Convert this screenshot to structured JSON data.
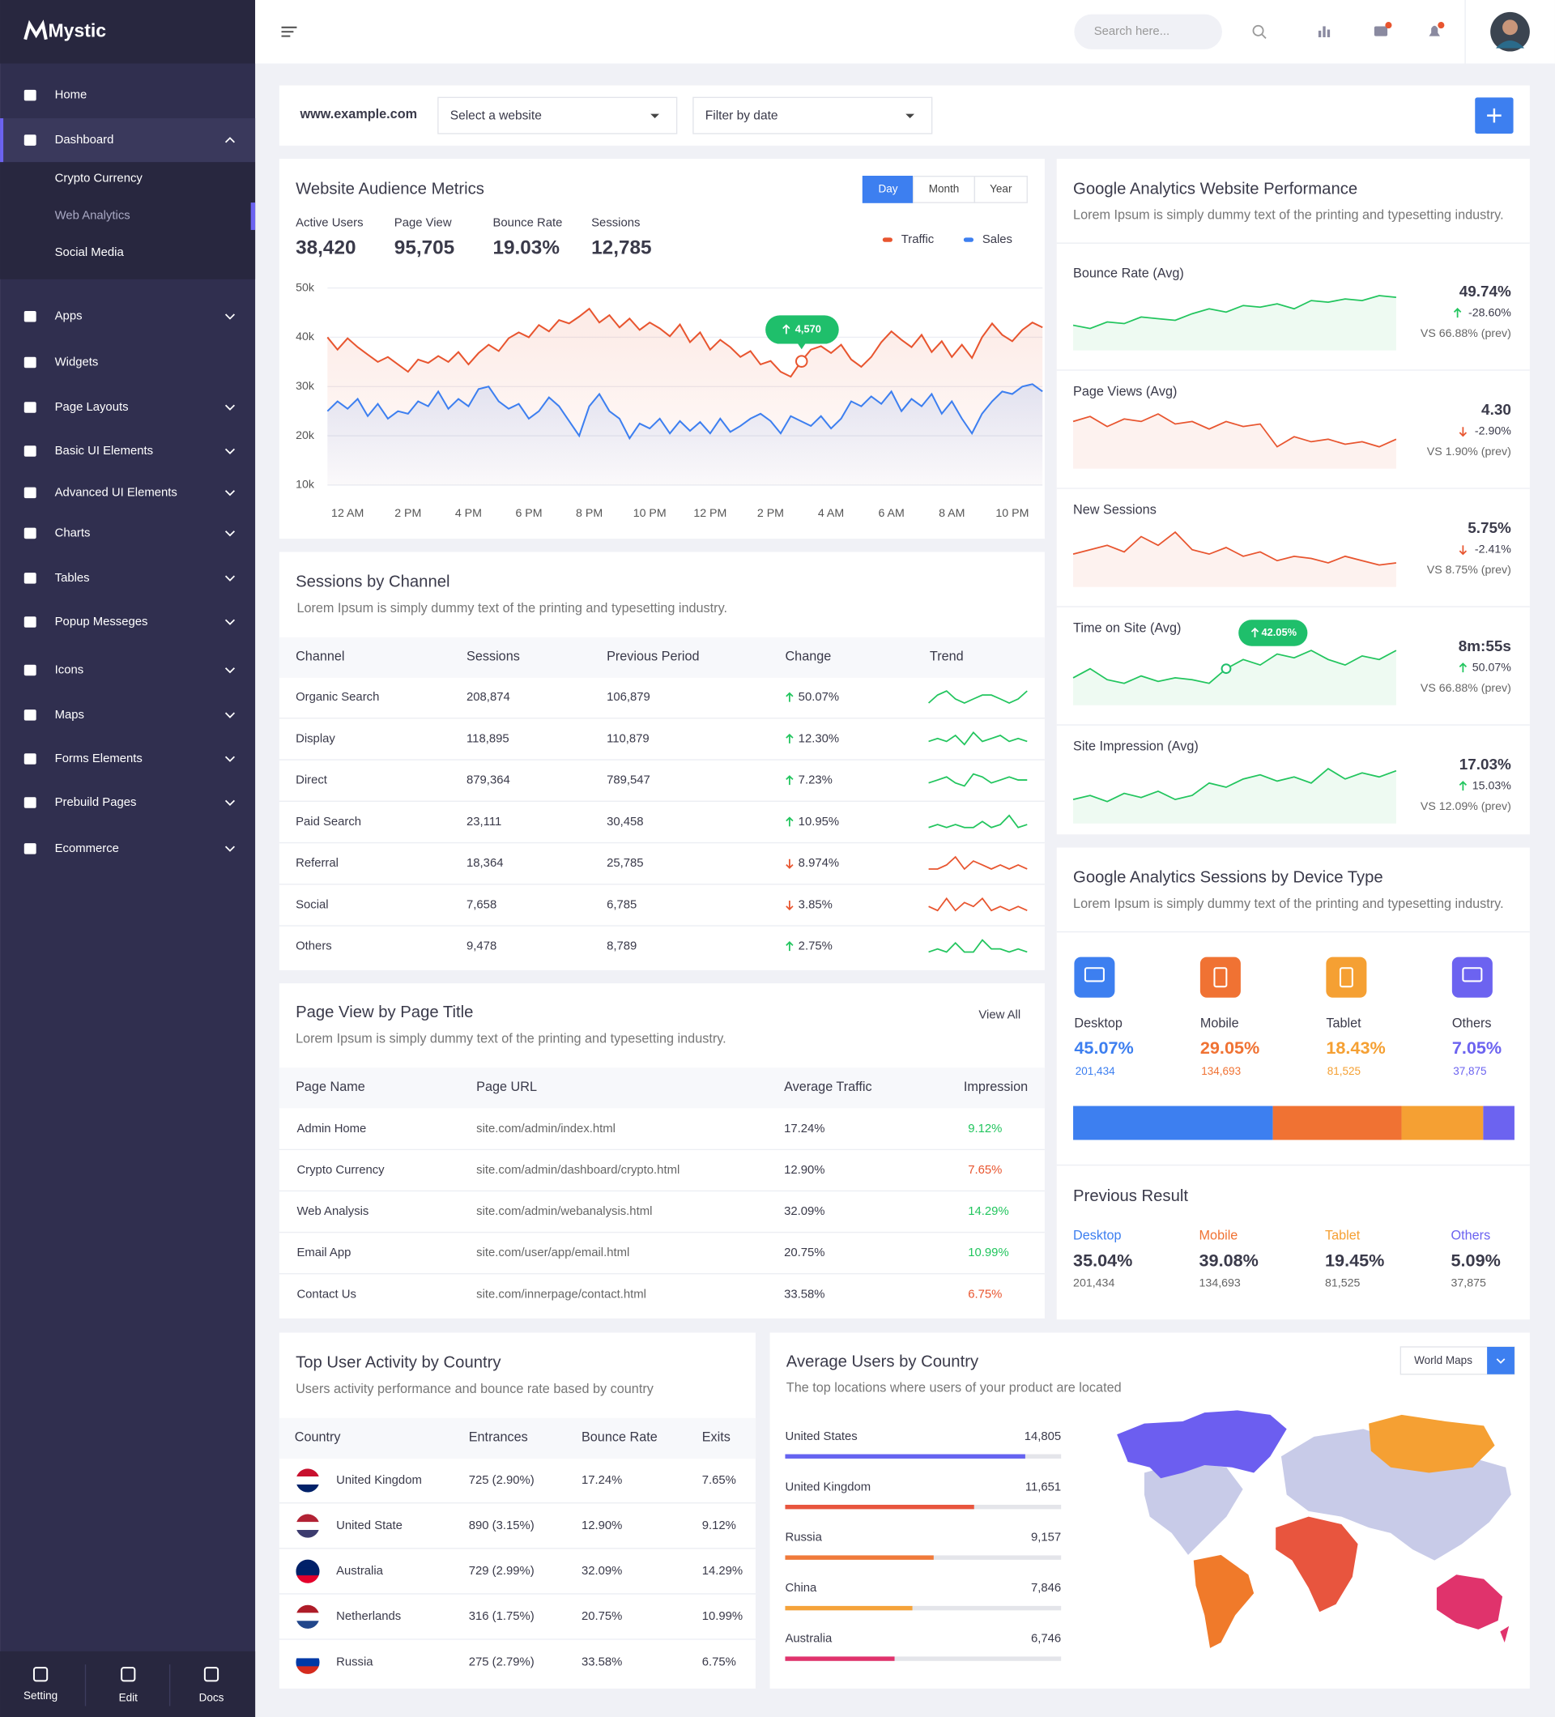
{
  "sidebar": {
    "brand": "Mystic",
    "menu": [
      {
        "label": "Home"
      },
      {
        "label": "Dashboard",
        "open": true
      },
      {
        "label": "Apps",
        "submenu": true
      },
      {
        "label": "Widgets"
      },
      {
        "label": "Page Layouts",
        "submenu": true
      },
      {
        "label": "Basic UI Elements",
        "submenu": true
      },
      {
        "label": "Advanced UI Elements",
        "submenu": true
      },
      {
        "label": "Charts",
        "submenu": true
      },
      {
        "label": "Tables",
        "submenu": true
      },
      {
        "label": "Popup Messeges",
        "submenu": true
      },
      {
        "label": "Icons",
        "submenu": true
      },
      {
        "label": "Maps",
        "submenu": true
      },
      {
        "label": "Forms Elements",
        "submenu": true
      },
      {
        "label": "Prebuild Pages",
        "submenu": true
      },
      {
        "label": "Ecommerce",
        "submenu": true
      }
    ],
    "submenu": [
      "Crypto Currency",
      "Web Analytics",
      "Social Media"
    ],
    "footer": [
      "Setting",
      "Edit",
      "Docs"
    ]
  },
  "header": {
    "search_placeholder": "Search here..."
  },
  "filters": {
    "site": "www.example.com",
    "select_website": "Select a website",
    "filter_date": "Filter by date"
  },
  "audience": {
    "range_buttons": [
      "Day",
      "Month",
      "Year"
    ],
    "metrics": [
      {
        "label": "Active Users",
        "value": "38,420"
      },
      {
        "label": "Page View",
        "value": "95,705"
      },
      {
        "label": "Bounce Rate",
        "value": "19.03%"
      },
      {
        "label": "Sessions",
        "value": "12,785"
      }
    ]
  },
  "chart_data": [
    {
      "type": "line",
      "title": "Website Audience Metrics",
      "categories": [
        null,
        null,
        "12 AM",
        null,
        null,
        null,
        null,
        null,
        "2 PM",
        null,
        null,
        null,
        null,
        null,
        "4 PM",
        null,
        null,
        null,
        null,
        null,
        "6 PM",
        null,
        null,
        null,
        null,
        null,
        "8 PM",
        null,
        null,
        null,
        null,
        null,
        "10 PM",
        null,
        null,
        null,
        null,
        null,
        "12 PM",
        null,
        null,
        null,
        null,
        null,
        "2 PM",
        null,
        null,
        null,
        null,
        null,
        "4 AM",
        null,
        null,
        null,
        null,
        null,
        "6 AM",
        null,
        null,
        null,
        null,
        null,
        "8 AM",
        null,
        null,
        null,
        null,
        null,
        "10 PM",
        null,
        null,
        null
      ],
      "series": [
        {
          "name": "Traffic",
          "color": "#e8552f",
          "values": [
            40000,
            37500,
            39800,
            38000,
            36500,
            35000,
            36000,
            34500,
            33000,
            35500,
            34800,
            36200,
            35000,
            37000,
            34500,
            36800,
            38500,
            37200,
            39800,
            41000,
            40000,
            42500,
            41200,
            43500,
            42800,
            44200,
            45800,
            43000,
            44500,
            42000,
            43800,
            41500,
            43000,
            41800,
            40200,
            42600,
            39000,
            41000,
            37500,
            39500,
            38000,
            36000,
            37200,
            34500,
            35200,
            33000,
            32000,
            35000,
            37500,
            38200,
            36800,
            38500,
            35500,
            34000,
            36000,
            39000,
            41200,
            39500,
            38000,
            40500,
            37000,
            39200,
            36000,
            38500,
            35800,
            40000,
            42800,
            40500,
            39200,
            41500,
            43000,
            42000
          ]
        },
        {
          "name": "Sales",
          "color": "#3d7ff0",
          "values": [
            25000,
            27000,
            25500,
            27500,
            24000,
            26500,
            23500,
            25000,
            24500,
            27000,
            26000,
            29000,
            25500,
            27500,
            26000,
            29500,
            30000,
            27000,
            25500,
            26500,
            23500,
            25000,
            27800,
            26000,
            23000,
            20000,
            26000,
            28500,
            25000,
            23500,
            19500,
            22500,
            21500,
            23500,
            20500,
            23000,
            21000,
            22800,
            20500,
            23500,
            20800,
            22000,
            23500,
            24500,
            23000,
            20500,
            24000,
            23000,
            22000,
            24000,
            21500,
            23500,
            27000,
            26000,
            28000,
            26500,
            29000,
            25000,
            27500,
            26000,
            28500,
            24500,
            27000,
            23500,
            20500,
            24500,
            27000,
            29000,
            28500,
            30000,
            30500,
            29000
          ]
        }
      ],
      "ylim": [
        10000,
        50000
      ],
      "yticks": [
        {
          "value": 10000,
          "label": "10k"
        },
        {
          "value": 20000,
          "label": "20k"
        },
        {
          "value": 30000,
          "label": "30k"
        },
        {
          "value": 40000,
          "label": "40k"
        },
        {
          "value": 50000,
          "label": "50k"
        }
      ],
      "grid": true,
      "legend": "top-right",
      "annotations": [
        {
          "text": "4,570"
        }
      ]
    },
    {
      "type": "bar",
      "orientation": "stacked-horizontal",
      "title": "Google Analytics Sessions by Device Type",
      "subtitle": "Lorem Ipsum is simply dummy text of the printing and typesetting industry.",
      "categories": [
        "Desktop",
        "Mobile",
        "Tablet",
        "Others"
      ],
      "values": [
        45.07,
        29.05,
        18.43,
        7.05
      ],
      "value_labels": [
        "45.07%",
        "29.05%",
        "18.43%",
        "7.05%"
      ],
      "counts": [
        "201,434",
        "134,693",
        "81,525",
        "37,875"
      ],
      "colors": [
        "#3d7ff0",
        "#f07233",
        "#f5a033",
        "#6c63f0"
      ]
    },
    {
      "type": "bar",
      "orientation": "horizontal",
      "title": "Average Users by Country",
      "subtitle": "The top locations where users of your product are located",
      "categories": [
        "United States",
        "United Kingdom",
        "Russia",
        "China",
        "Australia"
      ],
      "values": [
        14805,
        11651,
        9157,
        7846,
        6746
      ],
      "value_labels": [
        "14,805",
        "11,651",
        "9,157",
        "7,846",
        "6,746"
      ],
      "colors": [
        "#6563f0",
        "#e8553e",
        "#f07a3a",
        "#f5a33a",
        "#e0336c"
      ],
      "map_selector": "World Maps"
    }
  ],
  "performance": {
    "title": "Google Analytics Website Performance",
    "subtitle": "Lorem Ipsum is simply dummy text of the printing and typesetting industry.",
    "rows": [
      {
        "label": "Bounce Rate (Avg)",
        "value": "49.74%",
        "change": "-28.60%",
        "direction": "up",
        "prev": "VS 66.88% (prev)",
        "color": "#22c55e",
        "trend": [
          40,
          38,
          42,
          41,
          45,
          44,
          43,
          47,
          50,
          48,
          52,
          51,
          53,
          50,
          55,
          54,
          56,
          55,
          58,
          57
        ]
      },
      {
        "label": "Page Views (Avg)",
        "value": "4.30",
        "change": "-2.90%",
        "direction": "down",
        "prev": "VS 1.90% (prev)",
        "color": "#e8552f",
        "trend": [
          50,
          52,
          48,
          51,
          50,
          53,
          49,
          50,
          47,
          50,
          48,
          49,
          40,
          44,
          42,
          43,
          41,
          42,
          40,
          43
        ]
      },
      {
        "label": "New Sessions",
        "value": "5.75%",
        "change": "-2.41%",
        "direction": "down",
        "prev": "VS 8.75% (prev)",
        "color": "#e8552f",
        "trend": [
          48,
          50,
          52,
          49,
          56,
          52,
          58,
          50,
          48,
          51,
          47,
          49,
          45,
          47,
          46,
          44,
          47,
          45,
          43,
          44
        ]
      },
      {
        "label": "Time on Site (Avg)",
        "value": "8m:55s",
        "change": "50.07%",
        "direction": "up",
        "prev": "VS 66.88% (prev)",
        "color": "#22c55e",
        "annotation": "42.05%",
        "trend": [
          45,
          50,
          44,
          42,
          46,
          43,
          45,
          44,
          42,
          50,
          55,
          52,
          58,
          56,
          60,
          55,
          52,
          57,
          55,
          60
        ]
      },
      {
        "label": "Site Impression (Avg)",
        "value": "17.03%",
        "change": "15.03%",
        "direction": "up",
        "prev": "VS 12.09% (prev)",
        "color": "#22c55e",
        "trend": [
          40,
          42,
          39,
          43,
          41,
          44,
          40,
          42,
          48,
          46,
          50,
          52,
          49,
          51,
          48,
          55,
          50,
          53,
          51,
          54
        ]
      }
    ]
  },
  "channels": {
    "title": "Sessions by Channel",
    "subtitle": "Lorem Ipsum is simply dummy text of the printing and typesetting industry.",
    "columns": [
      "Channel",
      "Sessions",
      "Previous Period",
      "Change",
      "Trend"
    ],
    "rows": [
      {
        "cells": [
          "Organic Search",
          "208,874",
          "106,879",
          "50.07%"
        ],
        "direction": "up",
        "trend": [
          4,
          6,
          7,
          5,
          4,
          5,
          6,
          6,
          5,
          4,
          5,
          7
        ]
      },
      {
        "cells": [
          "Display",
          "118,895",
          "110,879",
          "12.30%"
        ],
        "direction": "up",
        "trend": [
          4,
          5,
          4,
          6,
          3,
          7,
          4,
          5,
          6,
          4,
          5,
          4
        ]
      },
      {
        "cells": [
          "Direct",
          "879,364",
          "789,547",
          "7.23%"
        ],
        "direction": "up",
        "trend": [
          4,
          5,
          6,
          4,
          3,
          7,
          6,
          4,
          5,
          6,
          5,
          5
        ]
      },
      {
        "cells": [
          "Paid Search",
          "23,111",
          "30,458",
          "10.95%"
        ],
        "direction": "up",
        "trend": [
          4,
          5,
          4,
          5,
          4,
          4,
          6,
          4,
          5,
          8,
          4,
          5
        ]
      },
      {
        "cells": [
          "Referral",
          "18,364",
          "25,785",
          "8.974%"
        ],
        "direction": "down",
        "trend": [
          4,
          4,
          5,
          7,
          4,
          6,
          5,
          4,
          5,
          4,
          5,
          4
        ]
      },
      {
        "cells": [
          "Social",
          "7,658",
          "6,785",
          "3.85%"
        ],
        "direction": "down",
        "trend": [
          5,
          4,
          7,
          4,
          6,
          5,
          7,
          4,
          5,
          4,
          5,
          4
        ]
      },
      {
        "cells": [
          "Others",
          "9,478",
          "8,789",
          "2.75%"
        ],
        "direction": "up",
        "trend": [
          4,
          5,
          4,
          7,
          4,
          4,
          8,
          5,
          5,
          4,
          5,
          4
        ]
      }
    ]
  },
  "pages": {
    "title": "Page View by Page Title",
    "subtitle": "Lorem Ipsum is simply dummy text of the printing and typesetting industry.",
    "action": "View All",
    "columns": [
      "Page Name",
      "Page URL",
      "Average Traffic",
      "Impression"
    ],
    "rows": [
      {
        "cells": [
          "Admin Home",
          "site.com/admin/index.html",
          "17.24%",
          "9.12%"
        ],
        "color": "#22c55e"
      },
      {
        "cells": [
          "Crypto Currency",
          "site.com/admin/dashboard/crypto.html",
          "12.90%",
          "7.65%"
        ],
        "color": "#e8552f"
      },
      {
        "cells": [
          "Web Analysis",
          "site.com/admin/webanalysis.html",
          "32.09%",
          "14.29%"
        ],
        "color": "#22c55e"
      },
      {
        "cells": [
          "Email App",
          "site.com/user/app/email.html",
          "20.75%",
          "10.99%"
        ],
        "color": "#22c55e"
      },
      {
        "cells": [
          "Contact Us",
          "site.com/innerpage/contact.html",
          "33.58%",
          "6.75%"
        ],
        "color": "#e8552f"
      }
    ]
  },
  "previous": {
    "title": "Previous Result",
    "items": [
      {
        "name": "Desktop",
        "value": "35.04%",
        "count": "201,434"
      },
      {
        "name": "Mobile",
        "value": "39.08%",
        "count": "134,693"
      },
      {
        "name": "Tablet",
        "value": "19.45%",
        "count": "81,525"
      },
      {
        "name": "Others",
        "value": "5.09%",
        "count": "37,875"
      }
    ]
  },
  "countries": {
    "title": "Top User Activity by Country",
    "subtitle": "Users activity performance and bounce rate based by country",
    "columns": [
      "Country",
      "Entrances",
      "Bounce Rate",
      "Exits"
    ],
    "rows": [
      [
        "United Kingdom",
        "725 (2.90%)",
        "17.24%",
        "7.65%"
      ],
      [
        "United State",
        "890 (3.15%)",
        "12.90%",
        "9.12%"
      ],
      [
        "Australia",
        "729 (2.99%)",
        "32.09%",
        "14.29%"
      ],
      [
        "Netherlands",
        "316 (1.75%)",
        "20.75%",
        "10.99%"
      ],
      [
        "Russia",
        "275 (2.79%)",
        "33.58%",
        "6.75%"
      ]
    ]
  }
}
